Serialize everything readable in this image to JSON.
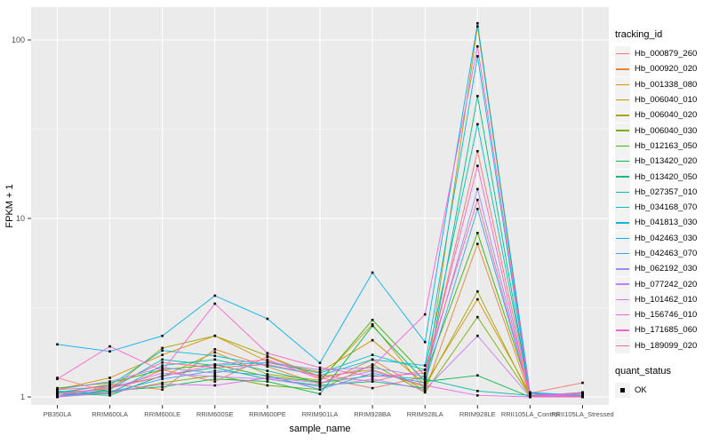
{
  "style": {
    "panel_bg": "#EBEBEB",
    "grid_major": "#FFFFFF",
    "grid_minor": "#F6F6F6",
    "tick_color": "#333333",
    "tick_label_color": "#4D4D4D",
    "axis_title_color": "#000000",
    "point_color": "#000000",
    "key_bg": "#F2F2F2"
  },
  "chart_data": {
    "type": "line",
    "title": "",
    "xlabel": "sample_name",
    "ylabel": "FPKM + 1",
    "y_scale": "log10",
    "y_ticks": [
      "1",
      "10",
      "100"
    ],
    "y_tick_values": [
      1,
      10,
      100
    ],
    "y_minor_values": [
      3.162,
      31.62
    ],
    "ylim": [
      0.9,
      153
    ],
    "grid": {
      "major": true,
      "minor": true
    },
    "legend": {
      "position": "right",
      "color_title": "tracking_id",
      "shape_title": "quant_status",
      "shape_items": [
        "OK"
      ]
    },
    "categories": [
      "PB350LA",
      "RRIM600LA",
      "RRIM600LE",
      "RRIM600SE",
      "RRIM600PE",
      "RRIM901LA",
      "RRIM928BA",
      "RRIM928LA",
      "RRIM928LE",
      "RRII105LA_Control",
      "RRII105LA_Stressed"
    ],
    "series": [
      {
        "name": "Hb_000879_260",
        "color": "#F8766D",
        "values": [
          1.28,
          1.06,
          1.42,
          1.22,
          1.68,
          1.28,
          1.12,
          1.3,
          23.8,
          1.05,
          1.2
        ]
      },
      {
        "name": "Hb_000920_020",
        "color": "#EA8331",
        "values": [
          1.04,
          1.18,
          1.1,
          1.85,
          1.48,
          1.18,
          1.62,
          1.08,
          7.2,
          1.01,
          1.04
        ]
      },
      {
        "name": "Hb_001338_080",
        "color": "#D89000",
        "values": [
          1.1,
          1.28,
          1.72,
          2.2,
          1.58,
          1.38,
          2.08,
          1.18,
          3.52,
          1.04,
          1.01
        ]
      },
      {
        "name": "Hb_006040_010",
        "color": "#C09B00",
        "values": [
          1.02,
          1.14,
          1.3,
          1.78,
          1.34,
          1.24,
          2.55,
          1.1,
          119,
          1.02,
          1.05
        ]
      },
      {
        "name": "Hb_006040_020",
        "color": "#A3A500",
        "values": [
          1.06,
          1.1,
          1.88,
          2.2,
          1.7,
          1.3,
          1.42,
          1.14,
          3.9,
          1.0,
          1.02
        ]
      },
      {
        "name": "Hb_006040_030",
        "color": "#7CAE00",
        "values": [
          1.0,
          1.05,
          1.2,
          1.32,
          1.16,
          1.1,
          1.52,
          1.06,
          2.8,
          1.01,
          1.0
        ]
      },
      {
        "name": "Hb_012163_050",
        "color": "#39B600",
        "values": [
          1.12,
          1.2,
          1.42,
          1.52,
          1.3,
          1.22,
          2.7,
          1.32,
          8.3,
          1.06,
          1.0
        ]
      },
      {
        "name": "Hb_013420_020",
        "color": "#00BB4E",
        "values": [
          1.02,
          1.08,
          1.14,
          1.26,
          1.22,
          1.04,
          2.5,
          1.22,
          1.32,
          1.0,
          1.02
        ]
      },
      {
        "name": "Hb_013420_050",
        "color": "#00BF7D",
        "values": [
          1.05,
          1.02,
          1.32,
          1.46,
          1.26,
          1.16,
          1.22,
          1.12,
          48.5,
          1.01,
          1.06
        ]
      },
      {
        "name": "Hb_027357_010",
        "color": "#00C1A3",
        "values": [
          1.08,
          1.04,
          1.5,
          1.62,
          1.4,
          1.2,
          1.32,
          1.26,
          1.08,
          1.02,
          1.0
        ]
      },
      {
        "name": "Hb_034168_070",
        "color": "#00BFC4",
        "values": [
          1.0,
          1.1,
          1.62,
          1.5,
          1.56,
          1.36,
          1.72,
          1.42,
          33.7,
          1.05,
          1.01
        ]
      },
      {
        "name": "Hb_041813_030",
        "color": "#00BAE0",
        "values": [
          1.06,
          1.16,
          1.82,
          1.7,
          1.5,
          1.32,
          1.62,
          1.5,
          81,
          1.0,
          1.06
        ]
      },
      {
        "name": "Hb_042463_030",
        "color": "#00B0F6",
        "values": [
          1.97,
          1.8,
          2.2,
          3.69,
          2.74,
          1.55,
          4.97,
          2.03,
          124,
          1.06,
          1.02
        ]
      },
      {
        "name": "Hb_042463_070",
        "color": "#35A2FF",
        "values": [
          1.02,
          1.06,
          1.26,
          1.4,
          1.32,
          1.1,
          1.36,
          1.2,
          11.3,
          1.02,
          1.0
        ]
      },
      {
        "name": "Hb_062192_030",
        "color": "#9590FF",
        "values": [
          1.1,
          1.22,
          1.46,
          1.36,
          1.56,
          1.42,
          1.46,
          1.3,
          14.6,
          1.04,
          1.02
        ]
      },
      {
        "name": "Hb_077242_020",
        "color": "#C77CFF",
        "values": [
          1.04,
          1.12,
          1.36,
          1.3,
          1.26,
          1.14,
          1.26,
          1.1,
          2.2,
          1.0,
          1.0
        ]
      },
      {
        "name": "Hb_101462_010",
        "color": "#E76BF3",
        "values": [
          1.0,
          1.06,
          1.18,
          1.16,
          1.28,
          1.2,
          1.4,
          1.16,
          1.02,
          1.0,
          1.04
        ]
      },
      {
        "name": "Hb_156746_010",
        "color": "#FA62DB",
        "values": [
          1.02,
          1.12,
          1.3,
          1.52,
          1.62,
          1.26,
          1.48,
          2.9,
          92,
          1.04,
          1.0
        ]
      },
      {
        "name": "Hb_171685_060",
        "color": "#FF61CC",
        "values": [
          1.26,
          1.92,
          1.4,
          3.33,
          1.76,
          1.46,
          1.3,
          1.36,
          19.7,
          1.0,
          1.06
        ]
      },
      {
        "name": "Hb_189099_020",
        "color": "#FF6A98",
        "values": [
          1.1,
          1.14,
          1.56,
          1.46,
          1.52,
          1.32,
          1.22,
          1.42,
          12.7,
          1.01,
          1.0
        ]
      }
    ]
  }
}
